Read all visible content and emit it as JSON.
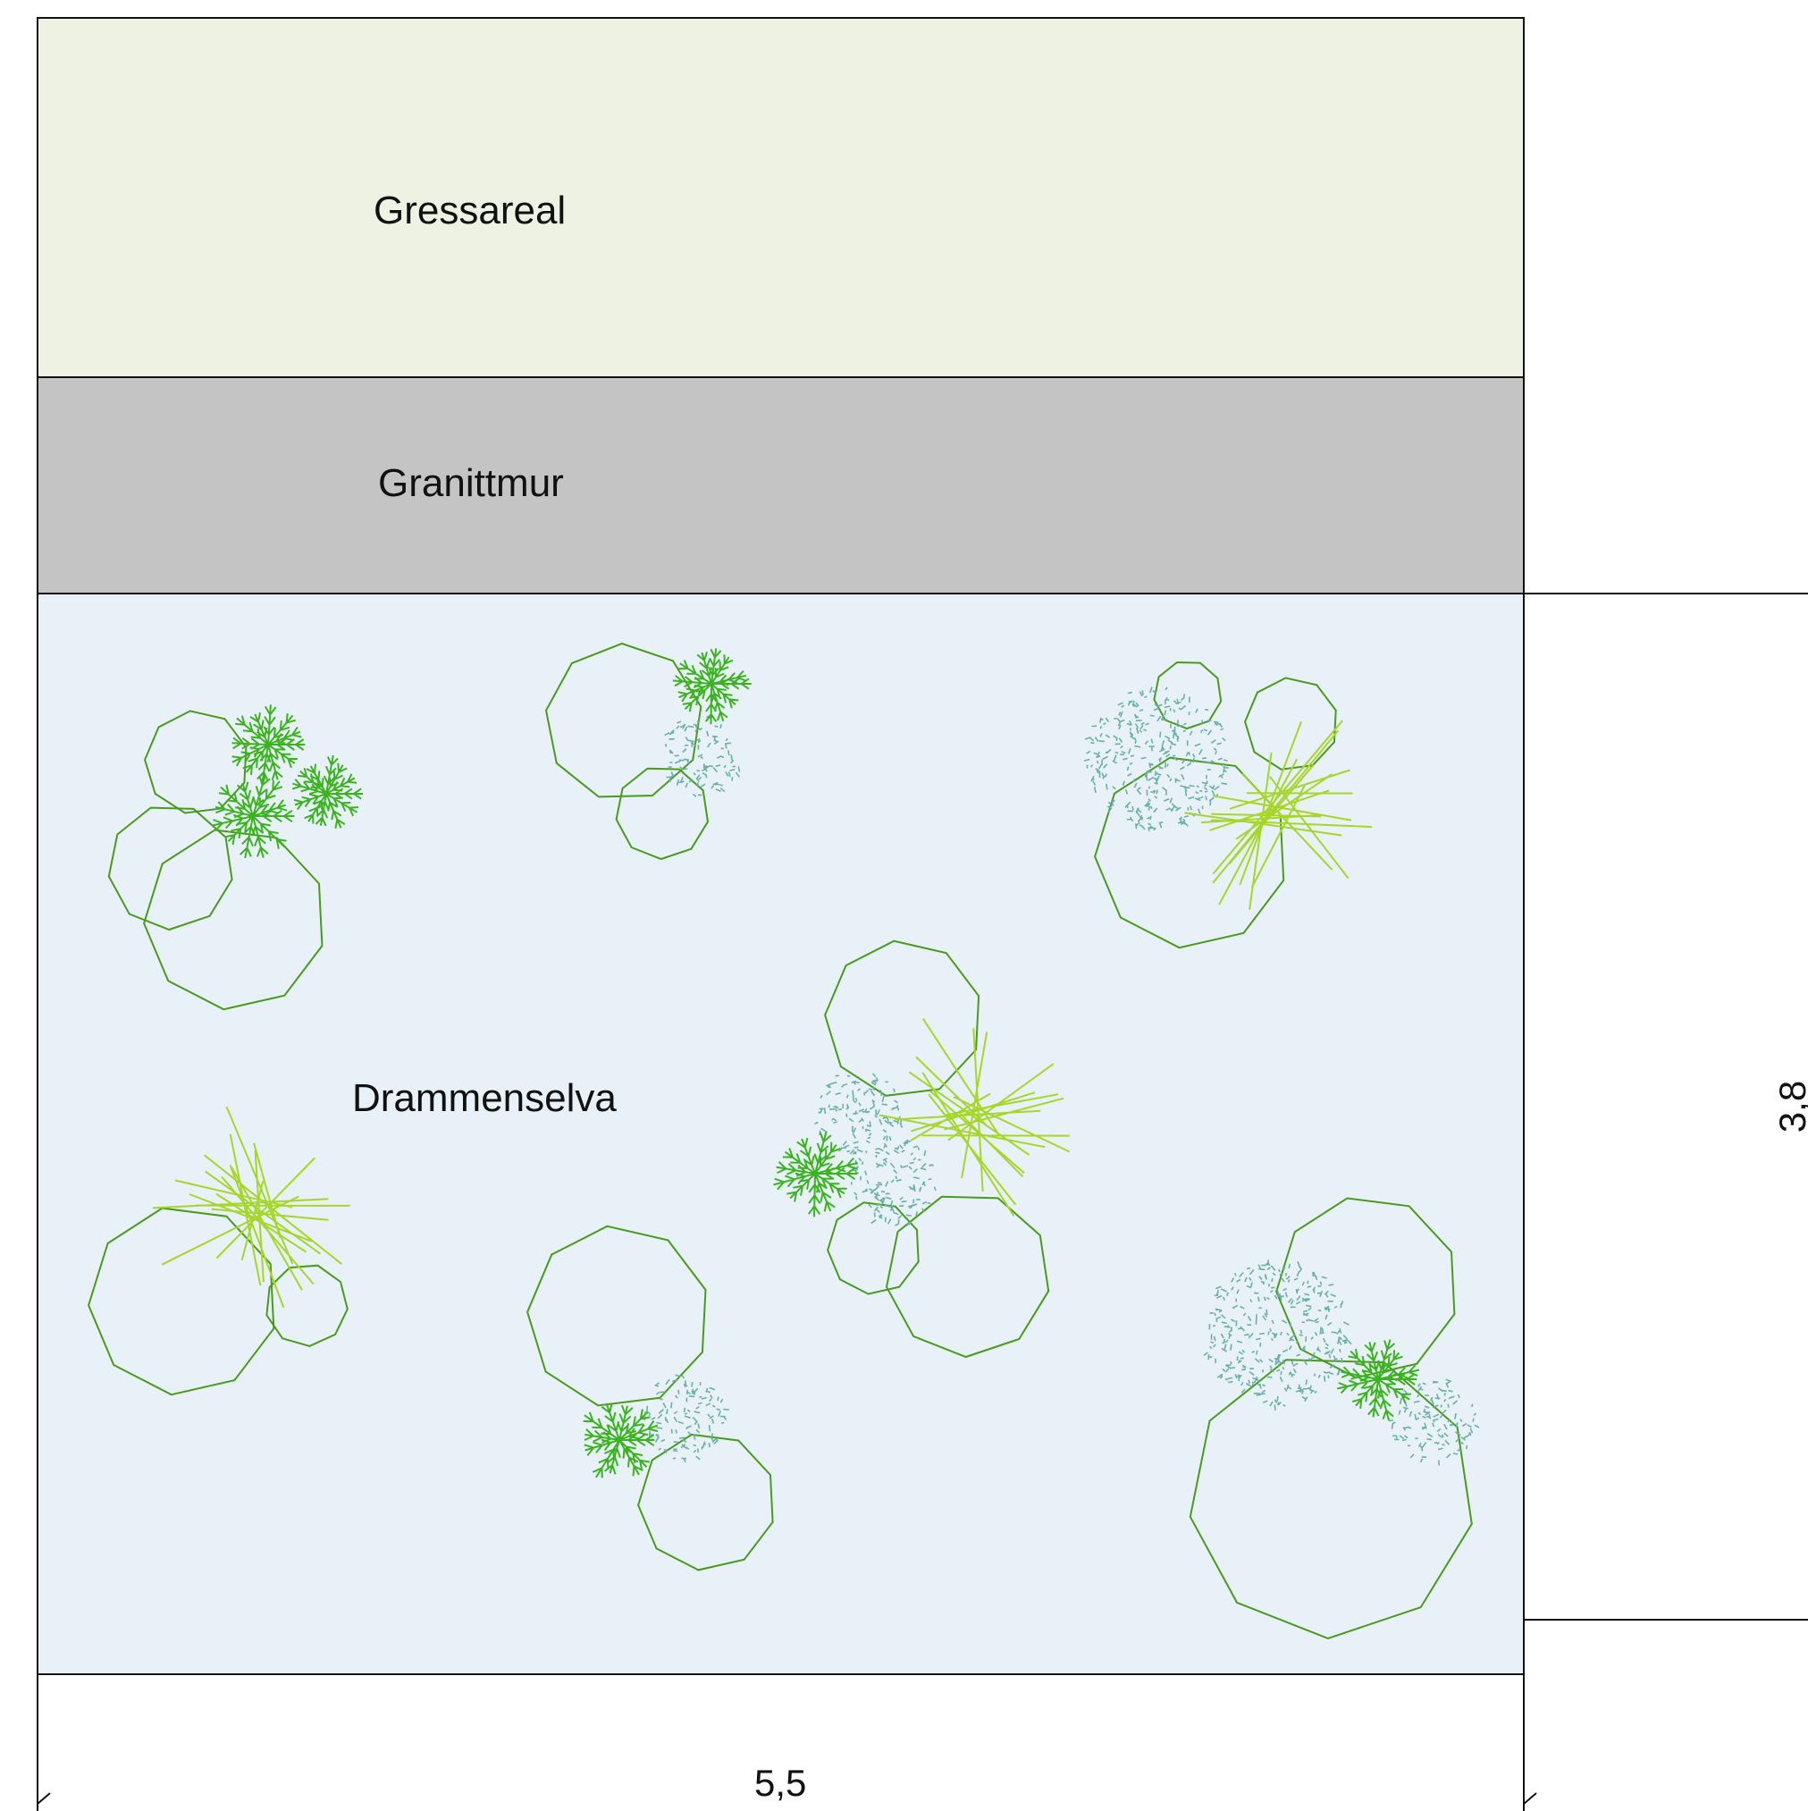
{
  "zones": {
    "grass": {
      "label": "Gressareal",
      "fill": "#edf2e2"
    },
    "wall": {
      "label": "Granittmur",
      "fill": "#c4c4c4"
    },
    "river": {
      "label": "Drammenselva",
      "fill": "#e8f1f7"
    }
  },
  "dimensions": {
    "width": "5,5",
    "height": "3,8"
  },
  "colors": {
    "outline": "#111111",
    "octagon": "#4a9a1e",
    "fern": "#3bb320",
    "spike": "#a6d62a",
    "dots": "#6ab0a6"
  },
  "plant_symbols": [
    "octagon-shrub",
    "fern-plant",
    "spiky-grass",
    "dotted-groundcover"
  ]
}
